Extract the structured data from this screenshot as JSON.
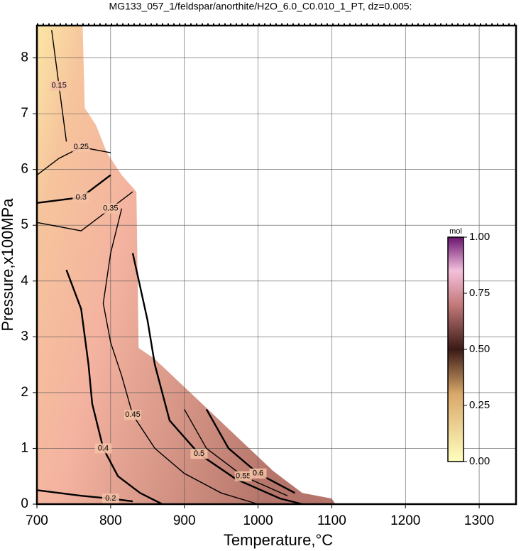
{
  "chart_data": {
    "type": "contour",
    "title": "MG133_057_1/feldspar/anorthite/H2O_6.0_C0.010_1_PT, dz=0.005:",
    "x_label": "Temperature,°C",
    "y_label": "Pressure,x100MPa",
    "xlim": [
      700,
      1350
    ],
    "ylim": [
      0,
      8.58
    ],
    "xticks": [
      700,
      800,
      900,
      1000,
      1100,
      1200,
      1300
    ],
    "yticks": [
      0,
      1,
      2,
      3,
      4,
      5,
      6,
      7,
      8
    ],
    "grid": true,
    "domain": {
      "x": [
        700,
        762,
        765,
        780,
        795,
        805,
        815,
        835,
        838,
        860,
        880,
        900,
        920,
        940,
        960,
        980,
        1000,
        1020,
        1040,
        1060,
        1100,
        1105
      ],
      "y": [
        8.58,
        8.58,
        7.1,
        6.8,
        6.3,
        6.1,
        5.9,
        5.6,
        2.8,
        2.6,
        2.35,
        2.1,
        1.85,
        1.6,
        1.35,
        1.1,
        0.85,
        0.6,
        0.4,
        0.2,
        0.1,
        0
      ]
    },
    "contours": [
      {
        "level": 0.15,
        "x": [
          720,
          725,
          730,
          740
        ],
        "y": [
          8.5,
          8.0,
          7.5,
          6.5
        ]
      },
      {
        "level": 0.2,
        "x": [
          700,
          760,
          800,
          830
        ],
        "y": [
          0.25,
          0.15,
          0.1,
          0.05
        ]
      },
      {
        "level": 0.25,
        "x": [
          700,
          730,
          760,
          800
        ],
        "y": [
          5.9,
          6.2,
          6.4,
          6.3
        ]
      },
      {
        "level": 0.3,
        "x": [
          700,
          760,
          800
        ],
        "y": [
          5.4,
          5.5,
          5.9
        ]
      },
      {
        "level": 0.35,
        "x": [
          700,
          760,
          800,
          830
        ],
        "y": [
          5.05,
          4.9,
          5.3,
          5.6
        ]
      },
      {
        "level": 0.4,
        "x": [
          740,
          760,
          770,
          775,
          790,
          810,
          840,
          870
        ],
        "y": [
          4.2,
          3.5,
          2.5,
          1.8,
          1.0,
          0.5,
          0.2,
          0
        ]
      },
      {
        "level": 0.45,
        "x": [
          815,
          800,
          790,
          800,
          815,
          830,
          860,
          900,
          950,
          1000
        ],
        "y": [
          5.3,
          4.5,
          3.6,
          2.9,
          2.3,
          1.6,
          1.0,
          0.55,
          0.2,
          0
        ]
      },
      {
        "level": 0.5,
        "x": [
          830,
          850,
          860,
          880,
          920,
          970,
          1030,
          1060
        ],
        "y": [
          4.5,
          3.3,
          2.5,
          1.5,
          0.9,
          0.45,
          0.1,
          0
        ]
      },
      {
        "level": 0.55,
        "x": [
          900,
          930,
          980,
          1040
        ],
        "y": [
          1.7,
          1.0,
          0.5,
          0.15
        ]
      },
      {
        "level": 0.6,
        "x": [
          930,
          960,
          1000,
          1050
        ],
        "y": [
          1.7,
          1.0,
          0.55,
          0.2
        ]
      }
    ],
    "colorbar": {
      "label": "mol",
      "lim": [
        0,
        1
      ],
      "ticks": [
        {
          "value": 0,
          "label": "0.00"
        },
        {
          "value": 0.25,
          "label": "0.25"
        },
        {
          "value": 0.5,
          "label": "0.50"
        },
        {
          "value": 0.75,
          "label": "0.75"
        },
        {
          "value": 1,
          "label": "1.00"
        }
      ]
    }
  }
}
